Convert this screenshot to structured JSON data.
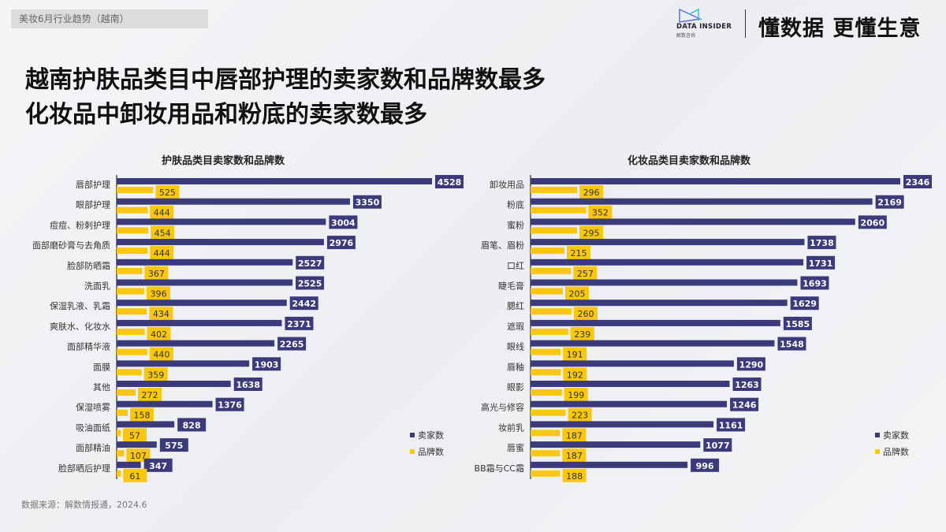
{
  "header": {
    "tag": "美妆6月行业趋势（越南）",
    "logo_text": "DATA INSIDER",
    "logo_sub": "解数咨询",
    "slogan": "懂数据 更懂生意"
  },
  "title": {
    "line1": "越南护肤品类目中唇部护理的卖家数和品牌数最多",
    "line2": "化妆品中卸妆用品和粉底的卖家数最多"
  },
  "source": "数据来源：解数情报通，2024.6",
  "colors": {
    "sellers": "#3b3a7a",
    "brands": "#f9c80e"
  },
  "chart_data": [
    {
      "type": "bar",
      "orientation": "horizontal",
      "title": "护肤品类目卖家数和品牌数",
      "categories": [
        "唇部护理",
        "眼部护理",
        "痘痘、粉刺护理",
        "面部磨砂膏与去角质",
        "脸部防晒霜",
        "洗面乳",
        "保湿乳液、乳霜",
        "爽肤水、化妆水",
        "面部精华液",
        "面膜",
        "其他",
        "保湿喷雾",
        "吸油面纸",
        "面部精油",
        "脸部晒后护理"
      ],
      "series": [
        {
          "name": "卖家数",
          "values": [
            4528,
            3350,
            3004,
            2976,
            2527,
            2525,
            2442,
            2371,
            2265,
            1903,
            1638,
            1376,
            828,
            575,
            347
          ]
        },
        {
          "name": "品牌数",
          "values": [
            525,
            444,
            454,
            444,
            367,
            396,
            434,
            402,
            440,
            359,
            272,
            158,
            57,
            107,
            61
          ]
        }
      ],
      "legend": "bottom-right"
    },
    {
      "type": "bar",
      "orientation": "horizontal",
      "title": "化妆品类目卖家数和品牌数",
      "categories": [
        "卸妆用品",
        "粉底",
        "蜜粉",
        "眉笔、眉粉",
        "口红",
        "睫毛膏",
        "腮红",
        "遮瑕",
        "眼线",
        "唇釉",
        "眼影",
        "高光与修容",
        "妆前乳",
        "唇蜜",
        "BB霜与CC霜"
      ],
      "series": [
        {
          "name": "卖家数",
          "values": [
            2346,
            2169,
            2060,
            1738,
            1731,
            1693,
            1629,
            1585,
            1548,
            1290,
            1263,
            1246,
            1161,
            1077,
            996
          ]
        },
        {
          "name": "品牌数",
          "values": [
            296,
            352,
            295,
            215,
            257,
            205,
            260,
            239,
            191,
            192,
            199,
            223,
            187,
            187,
            188
          ]
        }
      ],
      "legend": "bottom-right"
    }
  ]
}
